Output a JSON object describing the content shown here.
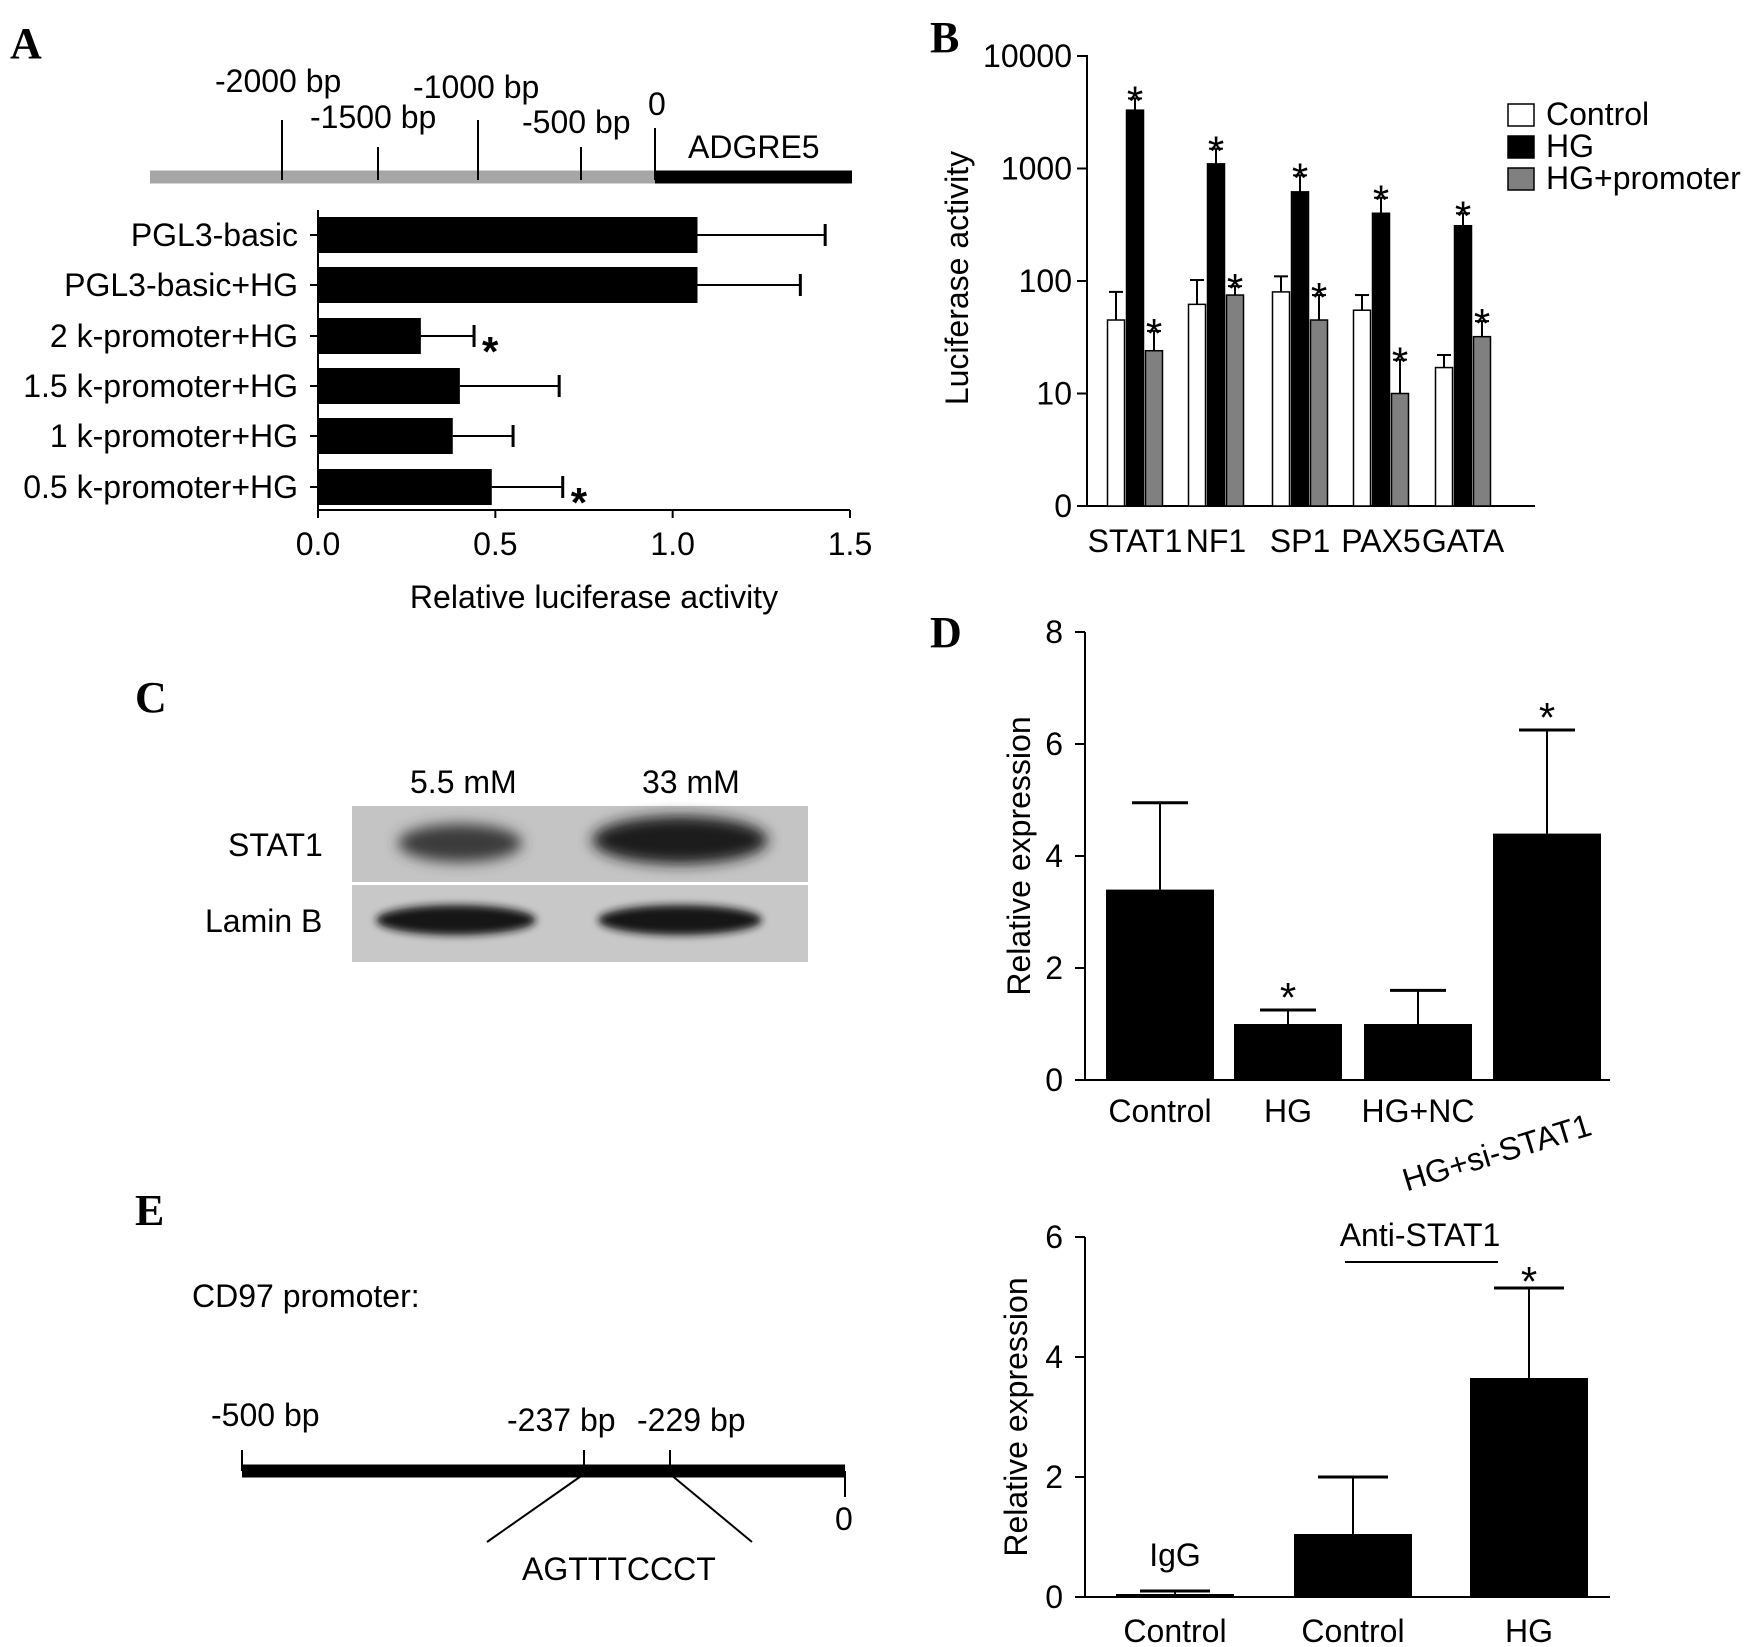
{
  "colors": {
    "ink": "#000000",
    "gray_bar": "#808080",
    "promoter_line": "#a6a6a6",
    "white": "#ffffff",
    "blot_bg": "#c8c8c8"
  },
  "panels": {
    "a": "A",
    "b": "B",
    "c": "C",
    "d": "D",
    "e": "E"
  },
  "panel_a": {
    "gene_label": "ADGRE5",
    "map_labels": [
      "-2000 bp",
      "-1500 bp",
      "-1000 bp",
      "-500 bp",
      "0"
    ]
  },
  "panel_c": {
    "lane_labels": [
      "5.5 mM",
      "33 mM"
    ],
    "row_labels": [
      "STAT1",
      "Lamin B"
    ]
  },
  "panel_e": {
    "title": "CD97 promoter:",
    "labels": [
      "-500 bp",
      "-237 bp",
      "-229 bp",
      "0"
    ],
    "sequence": "AGTTTCCCT",
    "bracket_label": "Anti-STAT1",
    "inner_bar_label": "IgG"
  },
  "chart_data": [
    {
      "id": "A",
      "type": "bar",
      "orientation": "horizontal",
      "categories": [
        "PGL3-basic",
        "PGL3-basic+HG",
        "2 k-promoter+HG",
        "1.5 k-promoter+HG",
        "1 k-promoter+HG",
        "0.5 k-promoter+HG"
      ],
      "values": [
        1.07,
        1.07,
        0.29,
        0.4,
        0.38,
        0.49
      ],
      "errors": [
        0.36,
        0.29,
        0.15,
        0.28,
        0.17,
        0.2
      ],
      "significant": [
        false,
        false,
        true,
        false,
        false,
        true
      ],
      "xlabel": "Relative luciferase activity",
      "ylabel": "",
      "xlim": [
        0,
        1.5
      ],
      "xticks": [
        "0.0",
        "0.5",
        "1.0",
        "1.5"
      ]
    },
    {
      "id": "B",
      "type": "bar",
      "yscale": "log",
      "categories": [
        "STAT1",
        "NF1",
        "SP1",
        "PAX5",
        "GATA"
      ],
      "series": [
        {
          "name": "Control",
          "values": [
            45,
            62,
            80,
            55,
            17
          ],
          "errors": [
            35,
            40,
            30,
            20,
            5
          ],
          "significant": [
            false,
            false,
            false,
            false,
            false
          ]
        },
        {
          "name": "HG",
          "values": [
            3300,
            1100,
            620,
            400,
            310
          ],
          "errors": [
            900,
            400,
            250,
            150,
            90
          ],
          "significant": [
            true,
            true,
            true,
            true,
            true
          ]
        },
        {
          "name": "HG+promoter",
          "values": [
            24,
            75,
            45,
            10,
            32
          ],
          "errors": [
            12,
            15,
            30,
            10,
            12
          ],
          "significant": [
            true,
            true,
            true,
            true,
            true
          ]
        }
      ],
      "ylabel": "Luciferase activity",
      "yticks": [
        "0",
        "10",
        "100",
        "1000",
        "10000"
      ],
      "legend": "top-right"
    },
    {
      "id": "D",
      "type": "bar",
      "categories": [
        "Control",
        "HG",
        "HG+NC",
        "HG+si-STAT1"
      ],
      "values": [
        3.4,
        1.0,
        1.0,
        4.4
      ],
      "errors": [
        1.55,
        0.25,
        0.6,
        1.85
      ],
      "significant": [
        false,
        true,
        false,
        true
      ],
      "ylabel": "Relative expression",
      "ylim": [
        0,
        8
      ],
      "yticks": [
        "0",
        "2",
        "4",
        "6",
        "8"
      ]
    },
    {
      "id": "E-right",
      "type": "bar",
      "categories": [
        "Control",
        "Control",
        "HG"
      ],
      "values": [
        0.05,
        1.05,
        3.65
      ],
      "errors": [
        0.05,
        0.95,
        1.5
      ],
      "significant": [
        false,
        false,
        true
      ],
      "ylabel": "Relative expression",
      "ylim": [
        0,
        6
      ],
      "yticks": [
        "0",
        "2",
        "4",
        "6"
      ]
    }
  ]
}
